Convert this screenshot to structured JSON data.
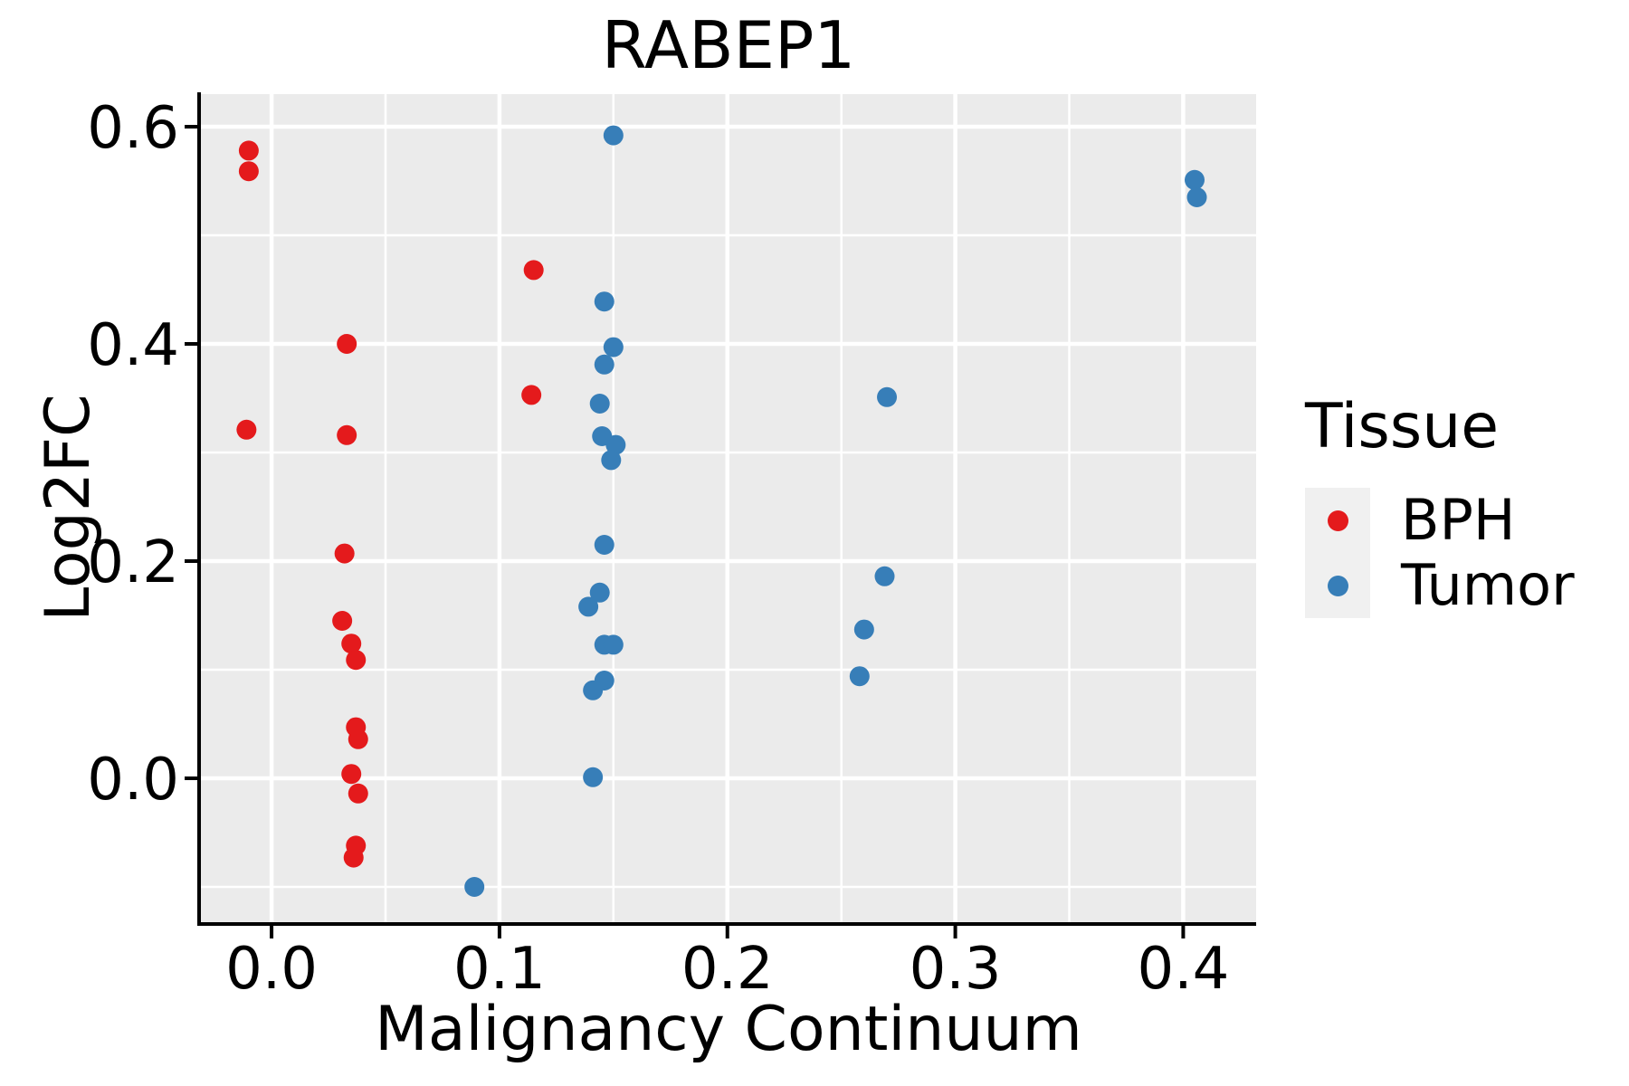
{
  "chart_data": {
    "type": "scatter",
    "title": "RABEP1",
    "xlabel": "Malignancy Continuum",
    "ylabel": "Log2FC",
    "xlim": [
      -0.031,
      0.432
    ],
    "ylim": [
      -0.1325,
      0.63
    ],
    "x_major_ticks": [
      0.0,
      0.1,
      0.2,
      0.3,
      0.4
    ],
    "x_tick_labels": [
      "0.0",
      "0.1",
      "0.2",
      "0.3",
      "0.4"
    ],
    "x_minor_ticks": [
      0.05,
      0.15,
      0.25,
      0.35
    ],
    "y_major_ticks": [
      0.0,
      0.2,
      0.4,
      0.6
    ],
    "y_tick_labels": [
      "0.0",
      "0.2",
      "0.4",
      "0.6"
    ],
    "y_minor_ticks": [
      -0.1,
      0.1,
      0.3,
      0.5
    ],
    "grid": true,
    "panel_background": "#EBEBEB",
    "gridline_color": "#FFFFFF",
    "axis_color": "#000000",
    "point_radius": 11,
    "legend_position": "right",
    "series": [
      {
        "name": "BPH",
        "color": "#E41A1C",
        "points": [
          [
            -0.01,
            0.578
          ],
          [
            -0.01,
            0.559
          ],
          [
            0.115,
            0.468
          ],
          [
            0.033,
            0.4
          ],
          [
            0.114,
            0.353
          ],
          [
            -0.011,
            0.321
          ],
          [
            0.033,
            0.316
          ],
          [
            0.032,
            0.207
          ],
          [
            0.031,
            0.145
          ],
          [
            0.035,
            0.124
          ],
          [
            0.037,
            0.109
          ],
          [
            0.037,
            0.047
          ],
          [
            0.038,
            0.036
          ],
          [
            0.035,
            0.004
          ],
          [
            0.038,
            -0.014
          ],
          [
            0.037,
            -0.062
          ],
          [
            0.036,
            -0.073
          ]
        ]
      },
      {
        "name": "Tumor",
        "color": "#377EB8",
        "points": [
          [
            0.15,
            0.592
          ],
          [
            0.405,
            0.551
          ],
          [
            0.406,
            0.535
          ],
          [
            0.146,
            0.439
          ],
          [
            0.15,
            0.397
          ],
          [
            0.146,
            0.381
          ],
          [
            0.27,
            0.351
          ],
          [
            0.144,
            0.345
          ],
          [
            0.145,
            0.315
          ],
          [
            0.151,
            0.307
          ],
          [
            0.149,
            0.293
          ],
          [
            0.146,
            0.215
          ],
          [
            0.269,
            0.186
          ],
          [
            0.144,
            0.171
          ],
          [
            0.139,
            0.158
          ],
          [
            0.26,
            0.137
          ],
          [
            0.146,
            0.123
          ],
          [
            0.15,
            0.123
          ],
          [
            0.258,
            0.094
          ],
          [
            0.146,
            0.09
          ],
          [
            0.141,
            0.081
          ],
          [
            0.141,
            0.001
          ],
          [
            0.089,
            -0.1
          ]
        ]
      }
    ]
  },
  "legend": {
    "title": "Tissue",
    "key_background": "#F0F0F0",
    "items": [
      {
        "label": "BPH",
        "color": "#E41A1C"
      },
      {
        "label": "Tumor",
        "color": "#377EB8"
      }
    ]
  }
}
